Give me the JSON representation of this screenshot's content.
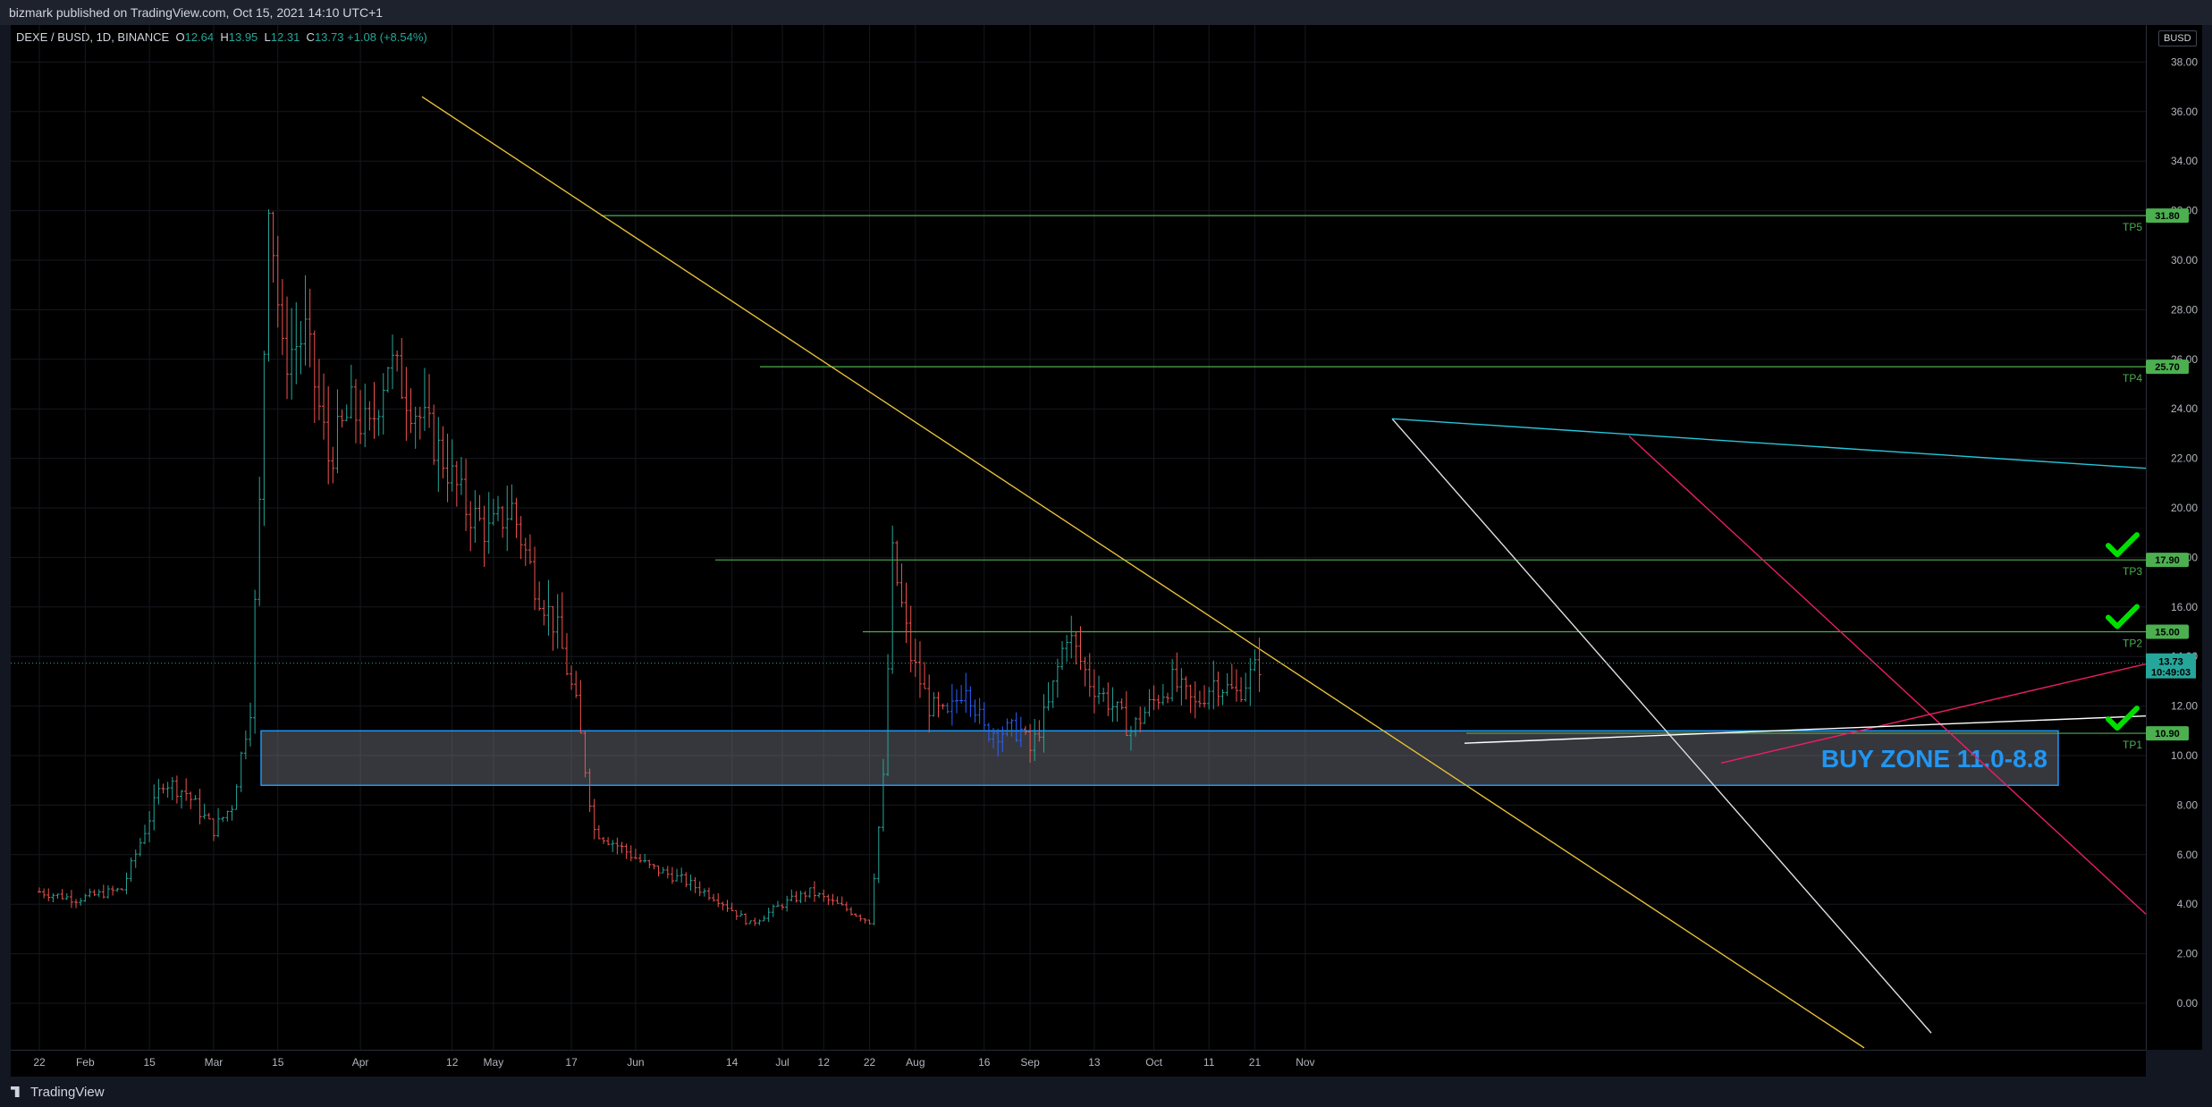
{
  "header": {
    "published": "bizmark published on TradingView.com, Oct 15, 2021 14:10 UTC+1"
  },
  "legend": {
    "symbol": "DEXE / BUSD, 1D, BINANCE",
    "o_label": "O",
    "o": "12.64",
    "h_label": "H",
    "h": "13.95",
    "l_label": "L",
    "l": "12.31",
    "c_label": "C",
    "c": "13.73",
    "change": "+1.08 (+8.54%)"
  },
  "currency_badge": "BUSD",
  "footer": {
    "brand": "TradingView"
  },
  "colors": {
    "up": "#26a69a",
    "down": "#ef5350",
    "tp_line": "#4caf50",
    "trend_yellow": "#e8c23a",
    "trend_white": "#e0e0e0",
    "trend_red": "#e91e63",
    "trend_teal": "#26c6da",
    "buyzone": "#2196f3",
    "check": "#00e000"
  },
  "chart_data": {
    "type": "candlestick",
    "symbol": "DEXE / BUSD",
    "interval": "1D",
    "exchange": "BINANCE",
    "ylim": [
      -2,
      39
    ],
    "y_ticks": [
      "0.00",
      "2.00",
      "4.00",
      "6.00",
      "8.00",
      "10.00",
      "12.00",
      "14.00",
      "16.00",
      "18.00",
      "20.00",
      "22.00",
      "24.00",
      "26.00",
      "28.00",
      "30.00",
      "32.00",
      "34.00",
      "36.00",
      "38.00"
    ],
    "x_ticks": [
      "22",
      "Feb",
      "15",
      "Mar",
      "15",
      "Apr",
      "12",
      "May",
      "17",
      "Jun",
      "14",
      "Jul",
      "12",
      "22",
      "Aug",
      "16",
      "Sep",
      "13",
      "Oct",
      "11",
      "21",
      "Nov"
    ],
    "last_price": "13.73",
    "countdown": "10:49:03",
    "take_profit_levels": [
      {
        "name": "TP1",
        "value": 10.9,
        "label": "10.90",
        "hit": true
      },
      {
        "name": "TP2",
        "value": 15.0,
        "label": "15.00",
        "hit": true
      },
      {
        "name": "TP3",
        "value": 17.9,
        "label": "17.90",
        "hit": true
      },
      {
        "name": "TP4",
        "value": 25.7,
        "label": "25.70",
        "hit": false
      },
      {
        "name": "TP5",
        "value": 31.8,
        "label": "31.80",
        "hit": false
      }
    ],
    "buy_zone": {
      "label": "BUY ZONE 11.0-8.8",
      "top": 11.0,
      "bottom": 8.8
    }
  }
}
